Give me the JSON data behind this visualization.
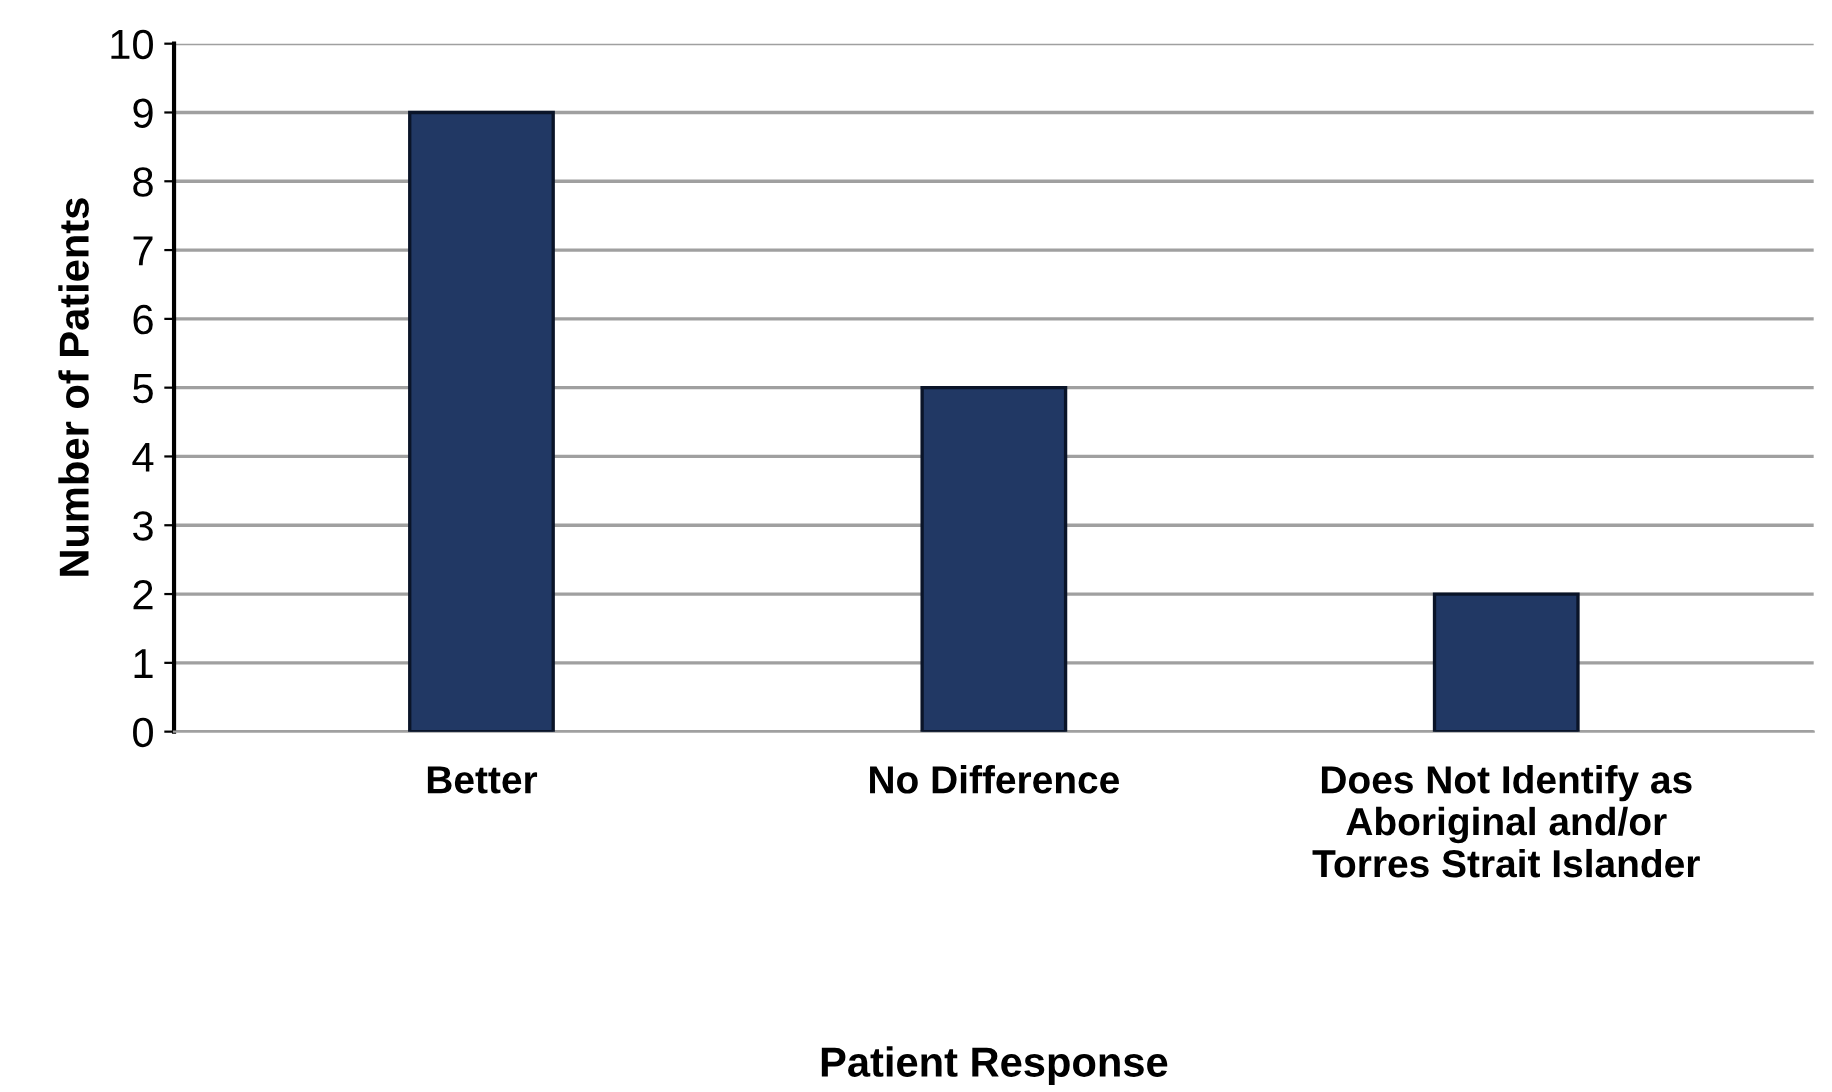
{
  "chart_data": {
    "type": "bar",
    "xlabel": "Patient Response",
    "ylabel": "Number of Patients",
    "categories": [
      "Better",
      "No Difference",
      "Does Not Identify as\nAboriginal and/or\nTorres Strait Islander"
    ],
    "values": [
      9,
      5,
      2
    ],
    "color": "#213864",
    "ylim": [
      0,
      10
    ],
    "yticks": [
      0,
      1,
      2,
      3,
      4,
      5,
      6,
      7,
      8,
      9,
      10
    ],
    "grid": "y"
  }
}
